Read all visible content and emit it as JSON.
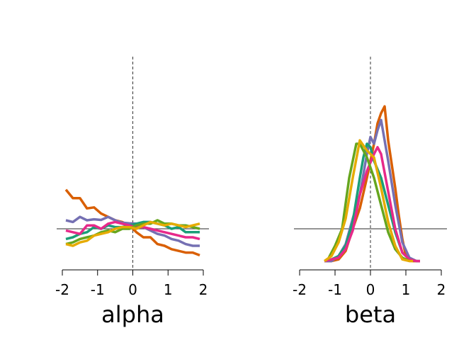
{
  "colors": [
    "#d95f02",
    "#7570b3",
    "#1b9e77",
    "#e7298a",
    "#66a61e",
    "#e6ab02"
  ],
  "chart_data": [
    {
      "type": "line",
      "xlabel": "alpha",
      "ylabel": "",
      "xlim": [
        -2,
        2
      ],
      "ylim": [
        -0.12,
        0.6
      ],
      "xticks": [
        "-2",
        "-1",
        "0",
        "1",
        "2"
      ],
      "x_values": [
        -2,
        -1,
        0,
        1,
        2
      ],
      "grid": false,
      "reference_lines": {
        "horizontal": 0,
        "vertical": 0
      },
      "series": [
        {
          "color": "#d95f02",
          "x": [
            -1.9,
            -1.7,
            -1.5,
            -1.3,
            -1.1,
            -0.9,
            -0.7,
            -0.5,
            -0.3,
            -0.1,
            0.1,
            0.3,
            0.5,
            0.7,
            0.9,
            1.1,
            1.3,
            1.5,
            1.7,
            1.9
          ],
          "y": [
            0.115,
            0.09,
            0.09,
            0.06,
            0.063,
            0.045,
            0.035,
            0.025,
            0.02,
            0.01,
            -0.01,
            -0.025,
            -0.025,
            -0.045,
            -0.05,
            -0.06,
            -0.065,
            -0.07,
            -0.07,
            -0.078
          ]
        },
        {
          "color": "#7570b3",
          "x": [
            -1.9,
            -1.7,
            -1.5,
            -1.3,
            -1.1,
            -0.9,
            -0.7,
            -0.5,
            -0.3,
            -0.1,
            0.1,
            0.3,
            0.5,
            0.7,
            0.9,
            1.1,
            1.3,
            1.5,
            1.7,
            1.9
          ],
          "y": [
            0.025,
            0.02,
            0.035,
            0.025,
            0.028,
            0.026,
            0.035,
            0.025,
            0.018,
            0.016,
            0.015,
            0.005,
            -0.005,
            -0.015,
            -0.02,
            -0.03,
            -0.035,
            -0.045,
            -0.05,
            -0.05
          ]
        },
        {
          "color": "#1b9e77",
          "x": [
            -1.9,
            -1.7,
            -1.5,
            -1.3,
            -1.1,
            -0.9,
            -0.7,
            -0.5,
            -0.3,
            -0.1,
            0.1,
            0.3,
            0.5,
            0.7,
            0.9,
            1.1,
            1.3,
            1.5,
            1.7,
            1.9
          ],
          "y": [
            -0.03,
            -0.025,
            -0.015,
            -0.01,
            0.005,
            0.0,
            0.01,
            0.005,
            0.005,
            0.01,
            0.015,
            0.02,
            0.02,
            0.015,
            0.01,
            0.0,
            0.005,
            -0.01,
            -0.01,
            -0.01
          ]
        },
        {
          "color": "#e7298a",
          "x": [
            -1.9,
            -1.7,
            -1.5,
            -1.3,
            -1.1,
            -0.9,
            -0.7,
            -0.5,
            -0.3,
            -0.1,
            0.1,
            0.3,
            0.5,
            0.7,
            0.9,
            1.1,
            1.3,
            1.5,
            1.7,
            1.9
          ],
          "y": [
            -0.005,
            -0.01,
            -0.015,
            0.01,
            0.01,
            0.0,
            0.015,
            0.02,
            0.015,
            0.01,
            0.005,
            0.005,
            0.0,
            -0.005,
            -0.01,
            -0.015,
            -0.02,
            -0.025,
            -0.025,
            -0.03
          ]
        },
        {
          "color": "#66a61e",
          "x": [
            -1.9,
            -1.7,
            -1.5,
            -1.3,
            -1.1,
            -0.9,
            -0.7,
            -0.5,
            -0.3,
            -0.1,
            0.1,
            0.3,
            0.5,
            0.7,
            0.9,
            1.1,
            1.3,
            1.5,
            1.7,
            1.9
          ],
          "y": [
            -0.045,
            -0.04,
            -0.03,
            -0.025,
            -0.02,
            -0.01,
            -0.005,
            -0.01,
            0.0,
            0.0,
            0.01,
            0.015,
            0.015,
            0.025,
            0.015,
            0.015,
            0.01,
            0.01,
            0.005,
            0.0
          ]
        },
        {
          "color": "#e6ab02",
          "x": [
            -1.9,
            -1.7,
            -1.5,
            -1.3,
            -1.1,
            -0.9,
            -0.7,
            -0.5,
            -0.3,
            -0.1,
            0.1,
            0.3,
            0.5,
            0.7,
            0.9,
            1.1,
            1.3,
            1.5,
            1.7,
            1.9
          ],
          "y": [
            -0.045,
            -0.05,
            -0.04,
            -0.035,
            -0.02,
            -0.015,
            -0.01,
            0.0,
            0.005,
            0.005,
            0.0,
            0.01,
            0.02,
            0.015,
            0.01,
            0.015,
            0.01,
            0.005,
            0.01,
            0.015
          ]
        }
      ]
    },
    {
      "type": "line",
      "xlabel": "beta",
      "ylabel": "",
      "xlim": [
        -2,
        2
      ],
      "ylim": [
        -0.12,
        0.6
      ],
      "xticks": [
        "-2",
        "-1",
        "0",
        "1",
        "2"
      ],
      "x_values": [
        -2,
        -1,
        0,
        1,
        2
      ],
      "grid": false,
      "reference_lines": {
        "horizontal": 0,
        "vertical": 0
      },
      "series": [
        {
          "color": "#d95f02",
          "x": [
            -1.3,
            -1.1,
            -0.9,
            -0.7,
            -0.5,
            -0.3,
            -0.1,
            0.1,
            0.2,
            0.3,
            0.4,
            0.5,
            0.6,
            0.7,
            0.8,
            0.9,
            1.0,
            1.1,
            1.2,
            1.3,
            1.4
          ],
          "y": [
            -0.095,
            -0.095,
            -0.09,
            -0.065,
            -0.0,
            0.06,
            0.15,
            0.25,
            0.31,
            0.34,
            0.36,
            0.26,
            0.19,
            0.12,
            0.04,
            -0.03,
            -0.08,
            -0.09,
            -0.095,
            -0.095,
            -0.095
          ]
        },
        {
          "color": "#7570b3",
          "x": [
            -1.3,
            -1.1,
            -0.9,
            -0.7,
            -0.5,
            -0.3,
            -0.1,
            0.0,
            0.1,
            0.2,
            0.3,
            0.5,
            0.7,
            0.9,
            1.1,
            1.3,
            1.4
          ],
          "y": [
            -0.095,
            -0.095,
            -0.08,
            -0.045,
            0.03,
            0.1,
            0.22,
            0.27,
            0.25,
            0.29,
            0.32,
            0.2,
            0.07,
            -0.04,
            -0.085,
            -0.095,
            -0.095
          ]
        },
        {
          "color": "#1b9e77",
          "x": [
            -1.3,
            -1.1,
            -0.9,
            -0.7,
            -0.5,
            -0.3,
            -0.2,
            -0.1,
            0.0,
            0.1,
            0.3,
            0.5,
            0.7,
            0.9,
            1.1,
            1.3,
            1.4
          ],
          "y": [
            -0.095,
            -0.09,
            -0.08,
            -0.05,
            0.02,
            0.15,
            0.21,
            0.25,
            0.24,
            0.2,
            0.15,
            0.07,
            -0.01,
            -0.07,
            -0.09,
            -0.095,
            -0.095
          ]
        },
        {
          "color": "#e7298a",
          "x": [
            -1.3,
            -1.1,
            -0.9,
            -0.7,
            -0.5,
            -0.3,
            -0.1,
            0.1,
            0.2,
            0.3,
            0.5,
            0.7,
            0.9,
            1.1,
            1.3,
            1.4
          ],
          "y": [
            -0.095,
            -0.09,
            -0.085,
            -0.06,
            -0.005,
            0.1,
            0.17,
            0.22,
            0.24,
            0.22,
            0.11,
            0.0,
            -0.07,
            -0.09,
            -0.095,
            -0.095
          ]
        },
        {
          "color": "#66a61e",
          "x": [
            -1.2,
            -1.0,
            -0.8,
            -0.6,
            -0.5,
            -0.4,
            -0.3,
            -0.1,
            0.1,
            0.3,
            0.5,
            0.7,
            0.9,
            1.1
          ],
          "y": [
            -0.09,
            -0.05,
            0.0,
            0.15,
            0.2,
            0.25,
            0.25,
            0.21,
            0.15,
            0.07,
            -0.01,
            -0.06,
            -0.085,
            -0.095
          ]
        },
        {
          "color": "#e6ab02",
          "x": [
            -1.3,
            -1.1,
            -0.9,
            -0.7,
            -0.5,
            -0.3,
            -0.1,
            0.1,
            0.3,
            0.5,
            0.7,
            0.9,
            1.1,
            1.2
          ],
          "y": [
            -0.095,
            -0.08,
            -0.04,
            0.03,
            0.15,
            0.26,
            0.23,
            0.21,
            0.12,
            0.02,
            -0.05,
            -0.09,
            -0.095,
            -0.095
          ]
        }
      ]
    }
  ]
}
